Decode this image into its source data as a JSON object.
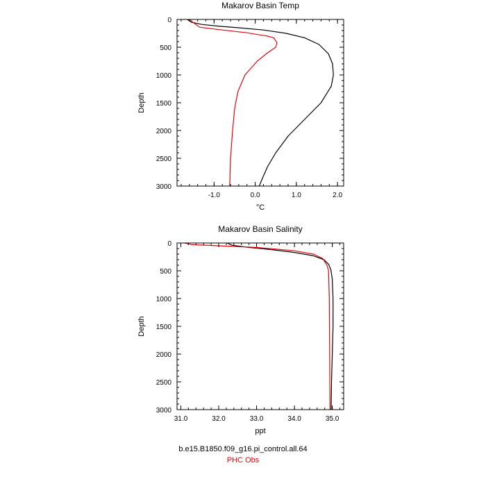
{
  "footer": {
    "run_name": "b.e15.B1850.f09_g16.pi_control.all.64",
    "obs_name": "PHC Obs",
    "run_color": "#000000",
    "obs_color": "#e8000b"
  },
  "chart_data": [
    {
      "type": "line",
      "title": "Makarov Basin Temp",
      "xlabel": "°C",
      "ylabel": "Depth",
      "xlim": [
        -1.9,
        2.15
      ],
      "ylim": [
        3000,
        0
      ],
      "y_inverted": true,
      "grid": false,
      "x_ticks": [
        -1.0,
        0.0,
        1.0,
        2.0
      ],
      "x_tick_labels": [
        "-1.0",
        "0.0",
        "1.0",
        "2.0"
      ],
      "y_ticks": [
        0,
        500,
        1000,
        1500,
        2000,
        2500,
        3000
      ],
      "y_tick_labels": [
        "0",
        "500",
        "1000",
        "1500",
        "2000",
        "2500",
        "3000"
      ],
      "series": [
        {
          "color": "#000000",
          "x": [
            -1.65,
            -1.55,
            -1.3,
            -0.9,
            -0.4,
            0.2,
            0.75,
            1.2,
            1.55,
            1.78,
            1.88,
            1.9,
            1.85,
            1.6,
            1.2,
            0.8,
            0.5,
            0.3,
            0.18,
            0.1
          ],
          "y": [
            0,
            50,
            90,
            120,
            150,
            190,
            250,
            330,
            450,
            620,
            800,
            1000,
            1200,
            1500,
            1800,
            2100,
            2400,
            2650,
            2850,
            3000
          ]
        },
        {
          "color": "#e8000b",
          "x": [
            -1.6,
            -1.5,
            -1.35,
            -0.8,
            -0.2,
            0.3,
            0.45,
            0.53,
            0.5,
            0.3,
            0.05,
            -0.25,
            -0.42,
            -0.5,
            -0.55,
            -0.6,
            -0.62
          ],
          "y": [
            0,
            60,
            140,
            190,
            240,
            300,
            330,
            420,
            500,
            600,
            750,
            1000,
            1300,
            1600,
            2000,
            2500,
            3000
          ]
        }
      ]
    },
    {
      "type": "line",
      "title": "Makarov Basin Salinity",
      "xlabel": "ppt",
      "ylabel": "Depth",
      "xlim": [
        30.9,
        35.3
      ],
      "ylim": [
        3000,
        0
      ],
      "y_inverted": true,
      "grid": false,
      "x_ticks": [
        31.0,
        32.0,
        33.0,
        34.0,
        35.0
      ],
      "x_tick_labels": [
        "31.0",
        "32.0",
        "33.0",
        "34.0",
        "35.0"
      ],
      "y_ticks": [
        0,
        500,
        1000,
        1500,
        2000,
        2500,
        3000
      ],
      "y_tick_labels": [
        "0",
        "500",
        "1000",
        "1500",
        "2000",
        "2500",
        "3000"
      ],
      "series": [
        {
          "color": "#000000",
          "x": [
            32.22,
            32.35,
            32.8,
            33.4,
            34.0,
            34.5,
            34.78,
            34.9,
            34.96,
            35.0,
            35.02,
            35.02,
            35.0,
            34.98,
            34.97
          ],
          "y": [
            0,
            40,
            80,
            120,
            170,
            230,
            300,
            380,
            480,
            650,
            1000,
            1500,
            2000,
            2500,
            3000
          ]
        },
        {
          "color": "#e8000b",
          "x": [
            31.1,
            31.3,
            32.0,
            33.0,
            34.0,
            34.5,
            34.75,
            34.86,
            34.9,
            34.92,
            34.93,
            34.94
          ],
          "y": [
            0,
            30,
            50,
            80,
            140,
            200,
            280,
            400,
            500,
            1000,
            2000,
            3000
          ]
        }
      ]
    }
  ]
}
